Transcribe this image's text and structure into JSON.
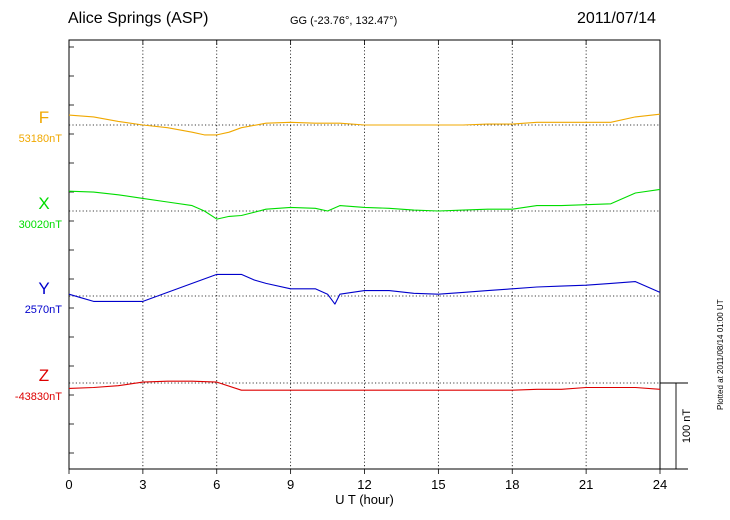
{
  "header": {
    "station": "Alice Springs (ASP)",
    "coords": "GG (-23.76°, 132.47°)",
    "date": "2011/07/14"
  },
  "footer": {
    "plotted": "Plotted at 2011/08/14 01:00 UT"
  },
  "chart_data": {
    "type": "line",
    "xlabel": "U T (hour)",
    "xlim": [
      0,
      24
    ],
    "xticks": [
      "0",
      "3",
      "6",
      "9",
      "12",
      "15",
      "18",
      "21",
      "24"
    ],
    "scale_bar_label": "100 nT",
    "grid": true,
    "series": [
      {
        "name": "F",
        "baseline_label": "53180nT",
        "color": "#f0a800",
        "x": [
          0,
          1,
          2,
          3,
          4,
          5,
          5.5,
          6,
          6.5,
          7,
          8,
          9,
          10,
          11,
          12,
          13,
          14,
          15,
          16,
          17,
          18,
          19,
          20,
          21,
          22,
          23,
          24
        ],
        "y": [
          11,
          9,
          4,
          0,
          -3,
          -8,
          -11,
          -11,
          -8,
          -3,
          2,
          3,
          2,
          2,
          0,
          0,
          0,
          0,
          0,
          1,
          1,
          3,
          3,
          3,
          3,
          9,
          12
        ]
      },
      {
        "name": "X",
        "baseline_label": "30020nT",
        "color": "#00dd00",
        "x": [
          0,
          1,
          2,
          3,
          4,
          5,
          5.5,
          6,
          6.5,
          7,
          8,
          9,
          10,
          10.5,
          11,
          12,
          13,
          14,
          15,
          16,
          17,
          18,
          19,
          20,
          21,
          22,
          23,
          24
        ],
        "y": [
          22,
          21,
          18,
          14,
          10,
          6,
          0,
          -9,
          -6,
          -5,
          2,
          4,
          3,
          0,
          6,
          4,
          3,
          1,
          0,
          1,
          2,
          2,
          6,
          6,
          7,
          8,
          20,
          24
        ]
      },
      {
        "name": "Y",
        "baseline_label": "2570nT",
        "color": "#0000cc",
        "x": [
          0,
          0.5,
          1,
          2,
          3,
          4,
          5,
          6,
          7,
          7.5,
          8,
          9,
          10,
          10.5,
          10.8,
          11,
          12,
          13,
          14,
          15,
          16,
          17,
          18,
          19,
          20,
          21,
          22,
          23,
          24
        ],
        "y": [
          2,
          -2,
          -6,
          -6,
          -6,
          4,
          14,
          24,
          24,
          18,
          14,
          8,
          8,
          2,
          -9,
          2,
          6,
          6,
          3,
          2,
          4,
          6,
          8,
          10,
          11,
          12,
          14,
          16,
          4
        ]
      },
      {
        "name": "Z",
        "baseline_label": "-43830nT",
        "color": "#dd0000",
        "x": [
          0,
          1,
          2,
          3,
          4,
          5,
          6,
          7,
          8,
          9,
          10,
          11,
          12,
          13,
          14,
          15,
          16,
          17,
          18,
          19,
          20,
          21,
          22,
          23,
          24
        ],
        "y": [
          -6,
          -5,
          -3,
          1,
          2,
          2,
          1,
          -8,
          -8,
          -8,
          -8,
          -8,
          -8,
          -8,
          -8,
          -8,
          -8,
          -8,
          -8,
          -7,
          -7,
          -5,
          -5,
          -5,
          -7
        ]
      }
    ]
  }
}
